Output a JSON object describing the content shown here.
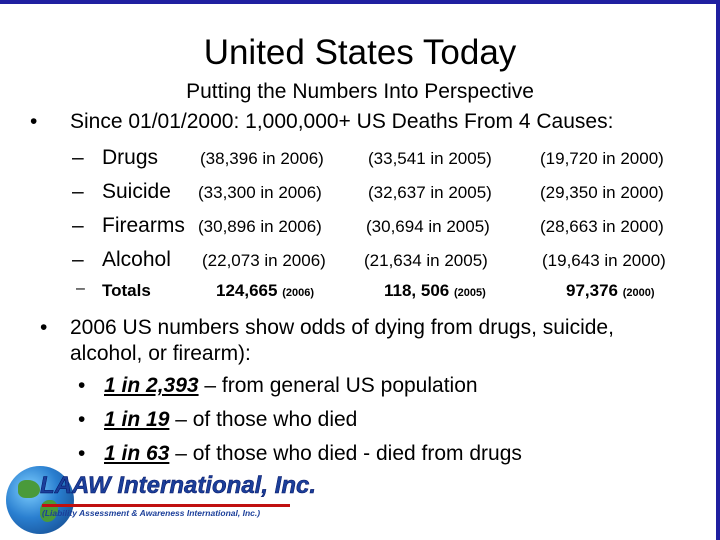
{
  "slide": {
    "title": "United States Today",
    "subtitle": "Putting the Numbers Into Perspective",
    "intro": "Since 01/01/2000:  1,000,000+ US Deaths From 4 Causes:",
    "rows": [
      {
        "label": "Drugs",
        "c2006": "(38,396 in 2006)",
        "c2005": "(33,541 in 2005)",
        "c2000": "(19,720 in 2000)"
      },
      {
        "label": "Suicide",
        "c2006": "(33,300 in 2006)",
        "c2005": "(32,637 in 2005)",
        "c2000": "(29,350 in 2000)"
      },
      {
        "label": "Firearms",
        "c2006": "(30,896 in 2006)",
        "c2005": "(30,694 in 2005)",
        "c2000": "(28,663 in 2000)"
      },
      {
        "label": "Alcohol",
        "c2006": "(22,073 in 2006)",
        "c2005": "(21,634 in 2005)",
        "c2000": "(19,643 in 2000)"
      }
    ],
    "totals": {
      "label": "Totals",
      "v2006": "124,665",
      "y2006": "(2006)",
      "v2005": "118, 506",
      "y2005": "(2005)",
      "v2000": "97,376",
      "y2000": "(2000)"
    },
    "second_bullet_line1": "2006 US numbers show odds of dying from drugs, suicide,",
    "second_bullet_line2": "alcohol, or firearm):",
    "odds": [
      {
        "value": "1 in 2,393",
        "text": " – from general US population"
      },
      {
        "value": "1 in 19",
        "text": " – of those who died"
      },
      {
        "value": "1 in 63",
        "text": " – of those who died - died from drugs"
      }
    ]
  },
  "logo": {
    "name": "LAAW International, Inc.",
    "tagline": "(Liability Assessment & Awareness International, Inc.)"
  },
  "colors": {
    "accent": "#1f1fa0",
    "logo_blue": "#1b3f9a",
    "logo_red": "#c01010"
  }
}
